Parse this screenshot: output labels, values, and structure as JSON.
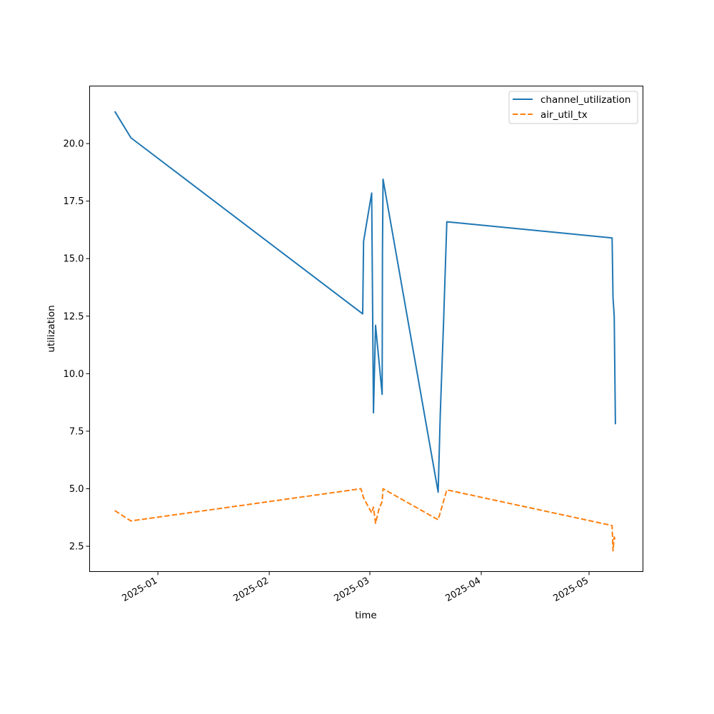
{
  "chart_data": {
    "type": "line",
    "title": "",
    "xlabel": "time",
    "ylabel": "utilization",
    "x_axis_type": "date",
    "xlim": [
      "2024-12-13",
      "2025-05-16"
    ],
    "ylim": [
      1.4,
      22.5
    ],
    "x_tick_labels": [
      "2025-01",
      "2025-02",
      "2025-03",
      "2025-04",
      "2025-05"
    ],
    "y_ticks": [
      2.5,
      5.0,
      7.5,
      10.0,
      12.5,
      15.0,
      17.5,
      20.0
    ],
    "y_tick_labels": [
      "2.5",
      "5.0",
      "7.5",
      "10.0",
      "12.5",
      "15.0",
      "17.5",
      "20.0"
    ],
    "grid": false,
    "legend_position": "top-right",
    "series": [
      {
        "name": "channel_utilization",
        "color": "#1f77b4",
        "line_style": "solid",
        "points": [
          [
            "2024-12-20 00:00",
            21.4
          ],
          [
            "2024-12-24 12:00",
            20.25
          ],
          [
            "2025-02-27 00:00",
            12.6
          ],
          [
            "2025-02-27 06:00",
            15.75
          ],
          [
            "2025-03-01 12:00",
            17.85
          ],
          [
            "2025-03-02 00:00",
            8.3
          ],
          [
            "2025-03-02 14:00",
            12.1
          ],
          [
            "2025-03-04 10:00",
            9.1
          ],
          [
            "2025-03-04 12:00",
            15.2
          ],
          [
            "2025-03-04 16:00",
            18.45
          ],
          [
            "2025-03-20 00:00",
            4.85
          ],
          [
            "2025-03-20 14:00",
            8.2
          ],
          [
            "2025-03-21 12:00",
            12.2
          ],
          [
            "2025-03-22 10:00",
            16.6
          ],
          [
            "2025-05-07 10:00",
            15.9
          ],
          [
            "2025-05-07 16:00",
            13.3
          ],
          [
            "2025-05-08 00:00",
            12.5
          ],
          [
            "2025-05-08 08:00",
            7.8
          ]
        ]
      },
      {
        "name": "air_util_tx",
        "color": "#ff7f0e",
        "line_style": "dashed",
        "points": [
          [
            "2024-12-20 00:00",
            4.05
          ],
          [
            "2024-12-24 12:00",
            3.6
          ],
          [
            "2025-02-26 12:00",
            5.0
          ],
          [
            "2025-02-27 06:00",
            4.6
          ],
          [
            "2025-03-01 12:00",
            3.95
          ],
          [
            "2025-03-02 00:00",
            4.2
          ],
          [
            "2025-03-02 14:00",
            3.5
          ],
          [
            "2025-03-03 12:00",
            4.1
          ],
          [
            "2025-03-04 10:00",
            4.45
          ],
          [
            "2025-03-04 16:00",
            5.0
          ],
          [
            "2025-03-20 00:00",
            3.65
          ],
          [
            "2025-03-22 10:00",
            4.95
          ],
          [
            "2025-05-07 10:00",
            3.4
          ],
          [
            "2025-05-07 16:00",
            2.3
          ],
          [
            "2025-05-08 00:00",
            2.9
          ],
          [
            "2025-05-08 08:00",
            2.75
          ]
        ]
      }
    ]
  }
}
